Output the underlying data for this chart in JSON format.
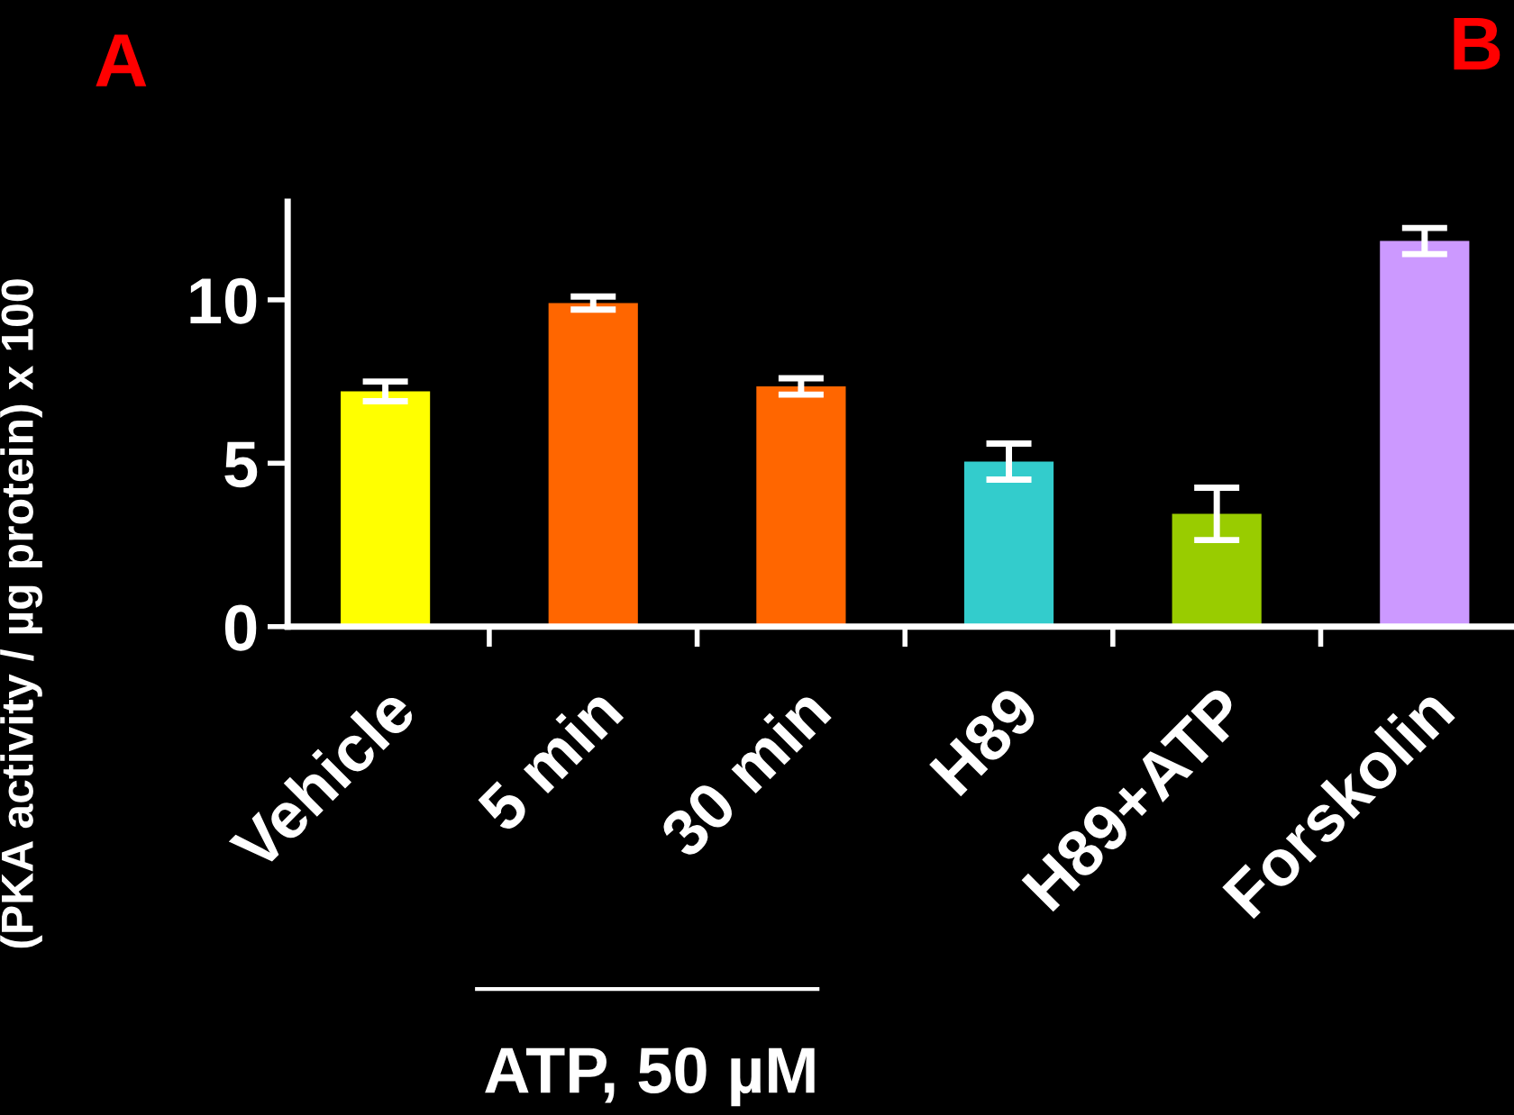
{
  "chart_data": {
    "type": "bar",
    "ylabel": "(PKA activity / µg protein) x 100",
    "categories": [
      "Vehicle",
      "5 min",
      "30 min",
      "H89",
      "H89+ATP",
      "Forskolin"
    ],
    "values": [
      7.2,
      9.9,
      7.35,
      5.05,
      3.45,
      11.8
    ],
    "errors": [
      0.3,
      0.2,
      0.25,
      0.55,
      0.8,
      0.4
    ],
    "colors": [
      "#ffff00",
      "#ff6600",
      "#ff6600",
      "#33cccc",
      "#99cc00",
      "#cc99ff"
    ],
    "ylim": [
      0,
      13
    ],
    "yticks": [
      0,
      5,
      10
    ],
    "grid": false,
    "legend": false,
    "annotations": [
      "A",
      "B",
      "ATP, 50 µM"
    ]
  }
}
